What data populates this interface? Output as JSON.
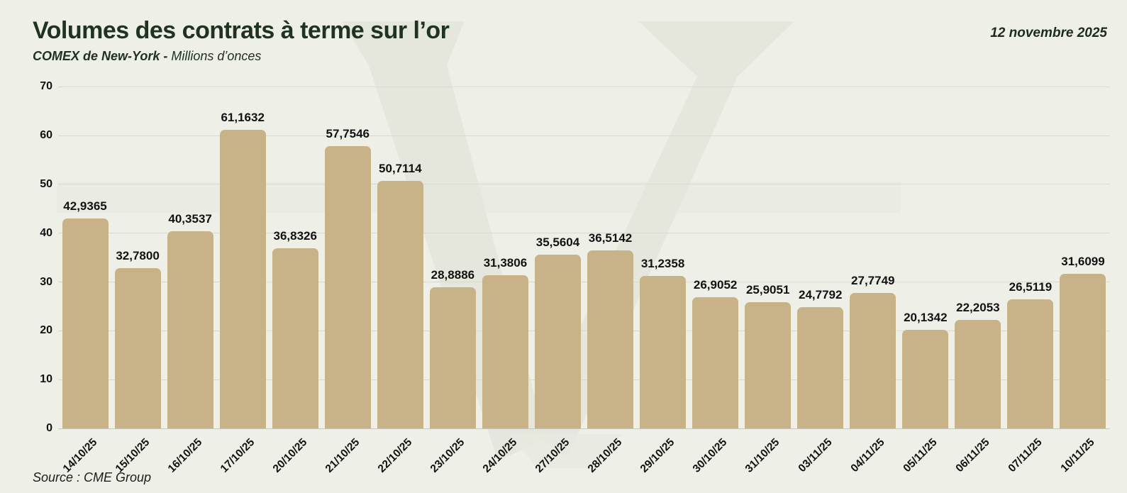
{
  "header": {
    "title": "Volumes des contrats à terme sur l’or",
    "subtitle_bold": "COMEX de New-York -",
    "subtitle_regular": " Millions d’onces",
    "date": "12 novembre 2025"
  },
  "footer": {
    "source": "Source : CME Group"
  },
  "colors": {
    "background": "#eef0e8",
    "watermark": "#e5e6dc",
    "bar": "#c8b287",
    "title": "#203320",
    "gridline": "#d8d9d0",
    "text": "#121212"
  },
  "chart_data": {
    "type": "bar",
    "title": "Volumes des contrats à terme sur l’or",
    "subtitle": "COMEX de New-York - Millions d’onces",
    "xlabel": "",
    "ylabel": "Millions d’onces",
    "ylim": [
      0,
      70
    ],
    "yticks": [
      0,
      10,
      20,
      30,
      40,
      50,
      60,
      70
    ],
    "grid": true,
    "legend": "none",
    "categories": [
      "14/10/25",
      "15/10/25",
      "16/10/25",
      "17/10/25",
      "20/10/25",
      "21/10/25",
      "22/10/25",
      "23/10/25",
      "24/10/25",
      "27/10/25",
      "28/10/25",
      "29/10/25",
      "30/10/25",
      "31/10/25",
      "03/11/25",
      "04/11/25",
      "05/11/25",
      "06/11/25",
      "07/11/25",
      "10/11/25"
    ],
    "values": [
      42.9365,
      32.78,
      40.3537,
      61.1632,
      36.8326,
      57.7546,
      50.7114,
      28.8886,
      31.3806,
      35.5604,
      36.5142,
      31.2358,
      26.9052,
      25.9051,
      24.7792,
      27.7749,
      20.1342,
      22.2053,
      26.5119,
      31.6099
    ],
    "value_labels": [
      "42,9365",
      "32,7800",
      "40,3537",
      "61,1632",
      "36,8326",
      "57,7546",
      "50,7114",
      "28,8886",
      "31,3806",
      "35,5604",
      "36,5142",
      "31,2358",
      "26,9052",
      "25,9051",
      "24,7792",
      "27,7749",
      "20,1342",
      "22,2053",
      "26,5119",
      "31,6099"
    ]
  }
}
